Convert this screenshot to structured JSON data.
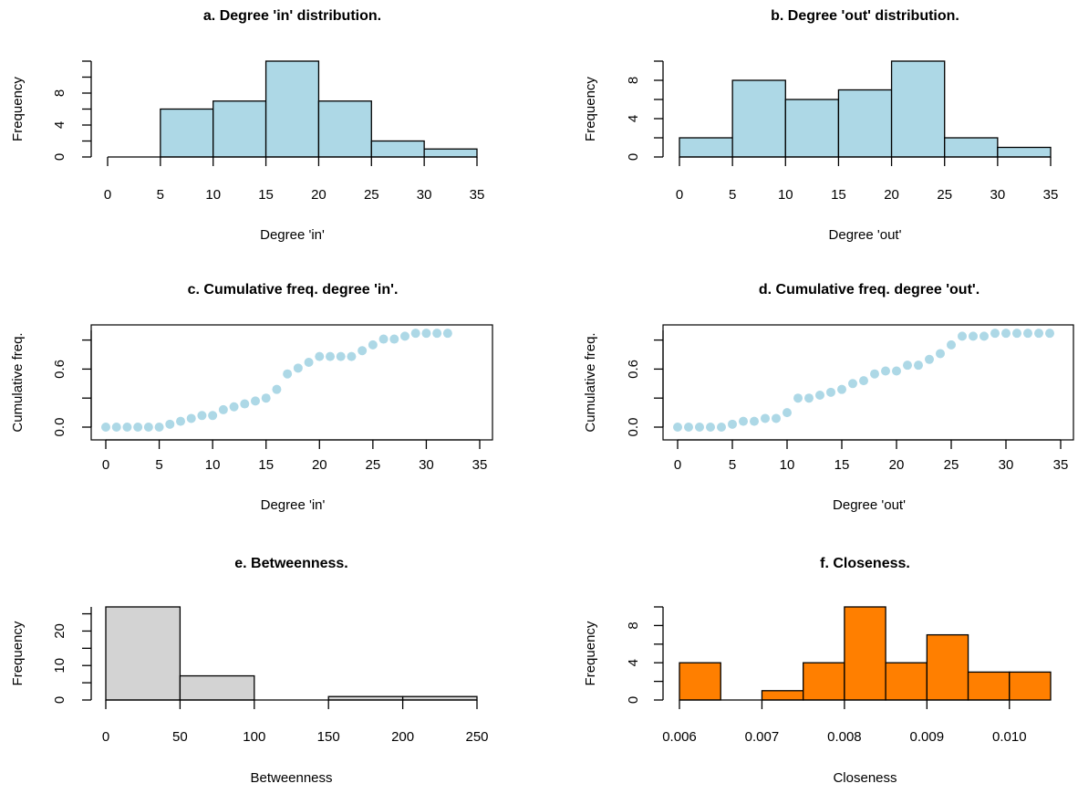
{
  "chart_data": [
    {
      "id": "a",
      "type": "bar",
      "title": "a. Degree 'in' distribution.",
      "xlabel": "Degree 'in'",
      "ylabel": "Frequency",
      "xlim": [
        0,
        35
      ],
      "ylim": [
        0,
        12
      ],
      "xticks": [
        0,
        5,
        10,
        15,
        20,
        25,
        30,
        35
      ],
      "yticks": [
        0,
        4,
        8
      ],
      "bins": [
        [
          0,
          5
        ],
        [
          5,
          10
        ],
        [
          10,
          15
        ],
        [
          15,
          20
        ],
        [
          20,
          25
        ],
        [
          25,
          30
        ],
        [
          30,
          35
        ]
      ],
      "values": [
        0,
        6,
        7,
        12,
        7,
        2,
        1
      ],
      "color": "#add8e6"
    },
    {
      "id": "b",
      "type": "bar",
      "title": "b. Degree 'out' distribution.",
      "xlabel": "Degree 'out'",
      "ylabel": "Frequency",
      "xlim": [
        0,
        35
      ],
      "ylim": [
        0,
        10
      ],
      "xticks": [
        0,
        5,
        10,
        15,
        20,
        25,
        30,
        35
      ],
      "yticks": [
        0,
        4,
        8
      ],
      "bins": [
        [
          0,
          5
        ],
        [
          5,
          10
        ],
        [
          10,
          15
        ],
        [
          15,
          20
        ],
        [
          20,
          25
        ],
        [
          25,
          30
        ],
        [
          30,
          35
        ]
      ],
      "values": [
        2,
        8,
        6,
        7,
        10,
        2,
        1
      ],
      "color": "#add8e6"
    },
    {
      "id": "c",
      "type": "scatter",
      "title": "c. Cumulative freq. degree 'in'.",
      "xlabel": "Degree 'in'",
      "ylabel": "Cumulative freq.",
      "xlim": [
        0,
        35
      ],
      "ylim": [
        0,
        1
      ],
      "xticks": [
        0,
        5,
        10,
        15,
        20,
        25,
        30,
        35
      ],
      "yticks": [
        0.0,
        0.6
      ],
      "ytick_labels": [
        "0.0",
        "0.6"
      ],
      "x": [
        0,
        1,
        2,
        3,
        4,
        5,
        6,
        7,
        8,
        9,
        10,
        11,
        12,
        13,
        14,
        15,
        16,
        17,
        18,
        19,
        20,
        21,
        22,
        23,
        24,
        25,
        26,
        27,
        28,
        29,
        30,
        31,
        32
      ],
      "y": [
        0.0,
        0.0,
        0.0,
        0.0,
        0.0,
        0.0,
        0.03,
        0.06,
        0.09,
        0.12,
        0.12,
        0.18,
        0.21,
        0.24,
        0.27,
        0.3,
        0.39,
        0.55,
        0.61,
        0.67,
        0.73,
        0.73,
        0.73,
        0.73,
        0.79,
        0.85,
        0.91,
        0.91,
        0.94,
        0.97,
        0.97,
        0.97,
        0.97
      ],
      "color": "#add8e6"
    },
    {
      "id": "d",
      "type": "scatter",
      "title": "d. Cumulative freq. degree 'out'.",
      "xlabel": "Degree 'out'",
      "ylabel": "Cumulative freq.",
      "xlim": [
        0,
        35
      ],
      "ylim": [
        0,
        1
      ],
      "xticks": [
        0,
        5,
        10,
        15,
        20,
        25,
        30,
        35
      ],
      "yticks": [
        0.0,
        0.6
      ],
      "ytick_labels": [
        "0.0",
        "0.6"
      ],
      "x": [
        0,
        1,
        2,
        3,
        4,
        5,
        6,
        7,
        8,
        9,
        10,
        11,
        12,
        13,
        14,
        15,
        16,
        17,
        18,
        19,
        20,
        21,
        22,
        23,
        24,
        25,
        26,
        27,
        28,
        29,
        30,
        31,
        32,
        33,
        34
      ],
      "y": [
        0.0,
        0.0,
        0.0,
        0.0,
        0.0,
        0.03,
        0.06,
        0.06,
        0.09,
        0.09,
        0.15,
        0.3,
        0.3,
        0.33,
        0.36,
        0.39,
        0.45,
        0.48,
        0.55,
        0.58,
        0.58,
        0.64,
        0.64,
        0.7,
        0.76,
        0.85,
        0.94,
        0.94,
        0.94,
        0.97,
        0.97,
        0.97,
        0.97,
        0.97,
        0.97
      ],
      "color": "#add8e6"
    },
    {
      "id": "e",
      "type": "bar",
      "title": "e. Betweenness.",
      "xlabel": "Betweenness",
      "ylabel": "Frequency",
      "xlim": [
        0,
        250
      ],
      "ylim": [
        0,
        27
      ],
      "xticks": [
        0,
        50,
        100,
        150,
        200,
        250
      ],
      "yticks": [
        0,
        10,
        20
      ],
      "bins": [
        [
          0,
          50
        ],
        [
          50,
          100
        ],
        [
          100,
          150
        ],
        [
          150,
          200
        ],
        [
          200,
          250
        ]
      ],
      "values": [
        27,
        7,
        0,
        1,
        1
      ],
      "color": "#d3d3d3"
    },
    {
      "id": "f",
      "type": "bar",
      "title": "f. Closeness.",
      "xlabel": "Closeness",
      "ylabel": "Frequency",
      "xlim": [
        0.006,
        0.0105
      ],
      "ylim": [
        0,
        10
      ],
      "xticks": [
        0.006,
        0.007,
        0.008,
        0.009,
        0.01
      ],
      "xtick_labels": [
        "0.006",
        "0.007",
        "0.008",
        "0.009",
        "0.010"
      ],
      "yticks": [
        0,
        4,
        8
      ],
      "bins": [
        [
          0.006,
          0.0065
        ],
        [
          0.0065,
          0.007
        ],
        [
          0.007,
          0.0075
        ],
        [
          0.0075,
          0.008
        ],
        [
          0.008,
          0.0085
        ],
        [
          0.0085,
          0.009
        ],
        [
          0.009,
          0.0095
        ],
        [
          0.0095,
          0.01
        ],
        [
          0.01,
          0.0105
        ]
      ],
      "values": [
        4,
        0,
        1,
        4,
        10,
        4,
        7,
        3,
        3
      ],
      "color": "#ff7f00"
    }
  ]
}
